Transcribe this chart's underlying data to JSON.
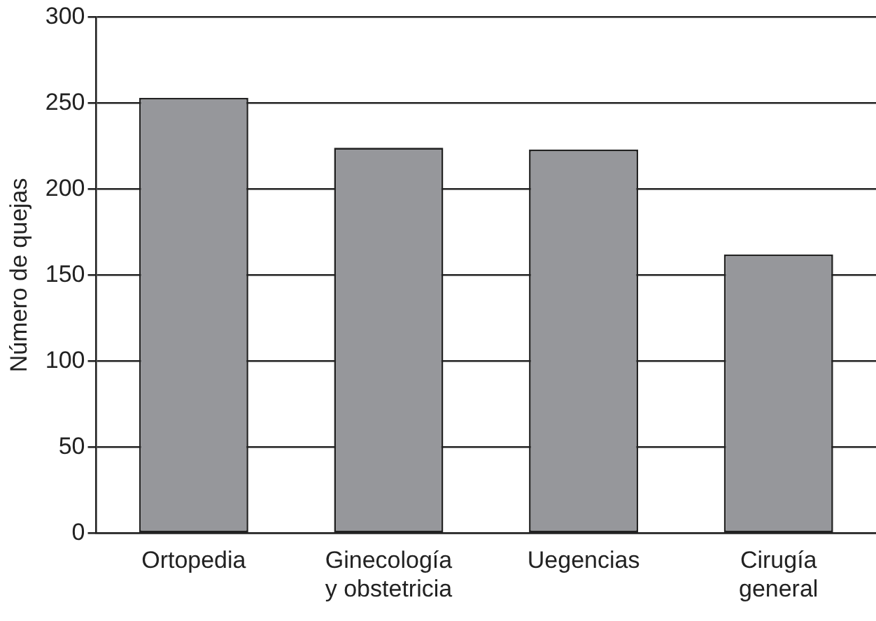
{
  "chart_data": {
    "type": "bar",
    "ylabel": "Número de quejas",
    "categories": [
      "Ortopedia",
      "Ginecología\ny obstetricia",
      "Uegencias",
      "Cirugía\ngeneral"
    ],
    "values": [
      253,
      224,
      223,
      162
    ],
    "color": "#96979b",
    "ylim": [
      0,
      300
    ],
    "yticks": [
      0,
      50,
      100,
      150,
      200,
      250,
      300
    ],
    "grid": "y",
    "legend": false
  }
}
